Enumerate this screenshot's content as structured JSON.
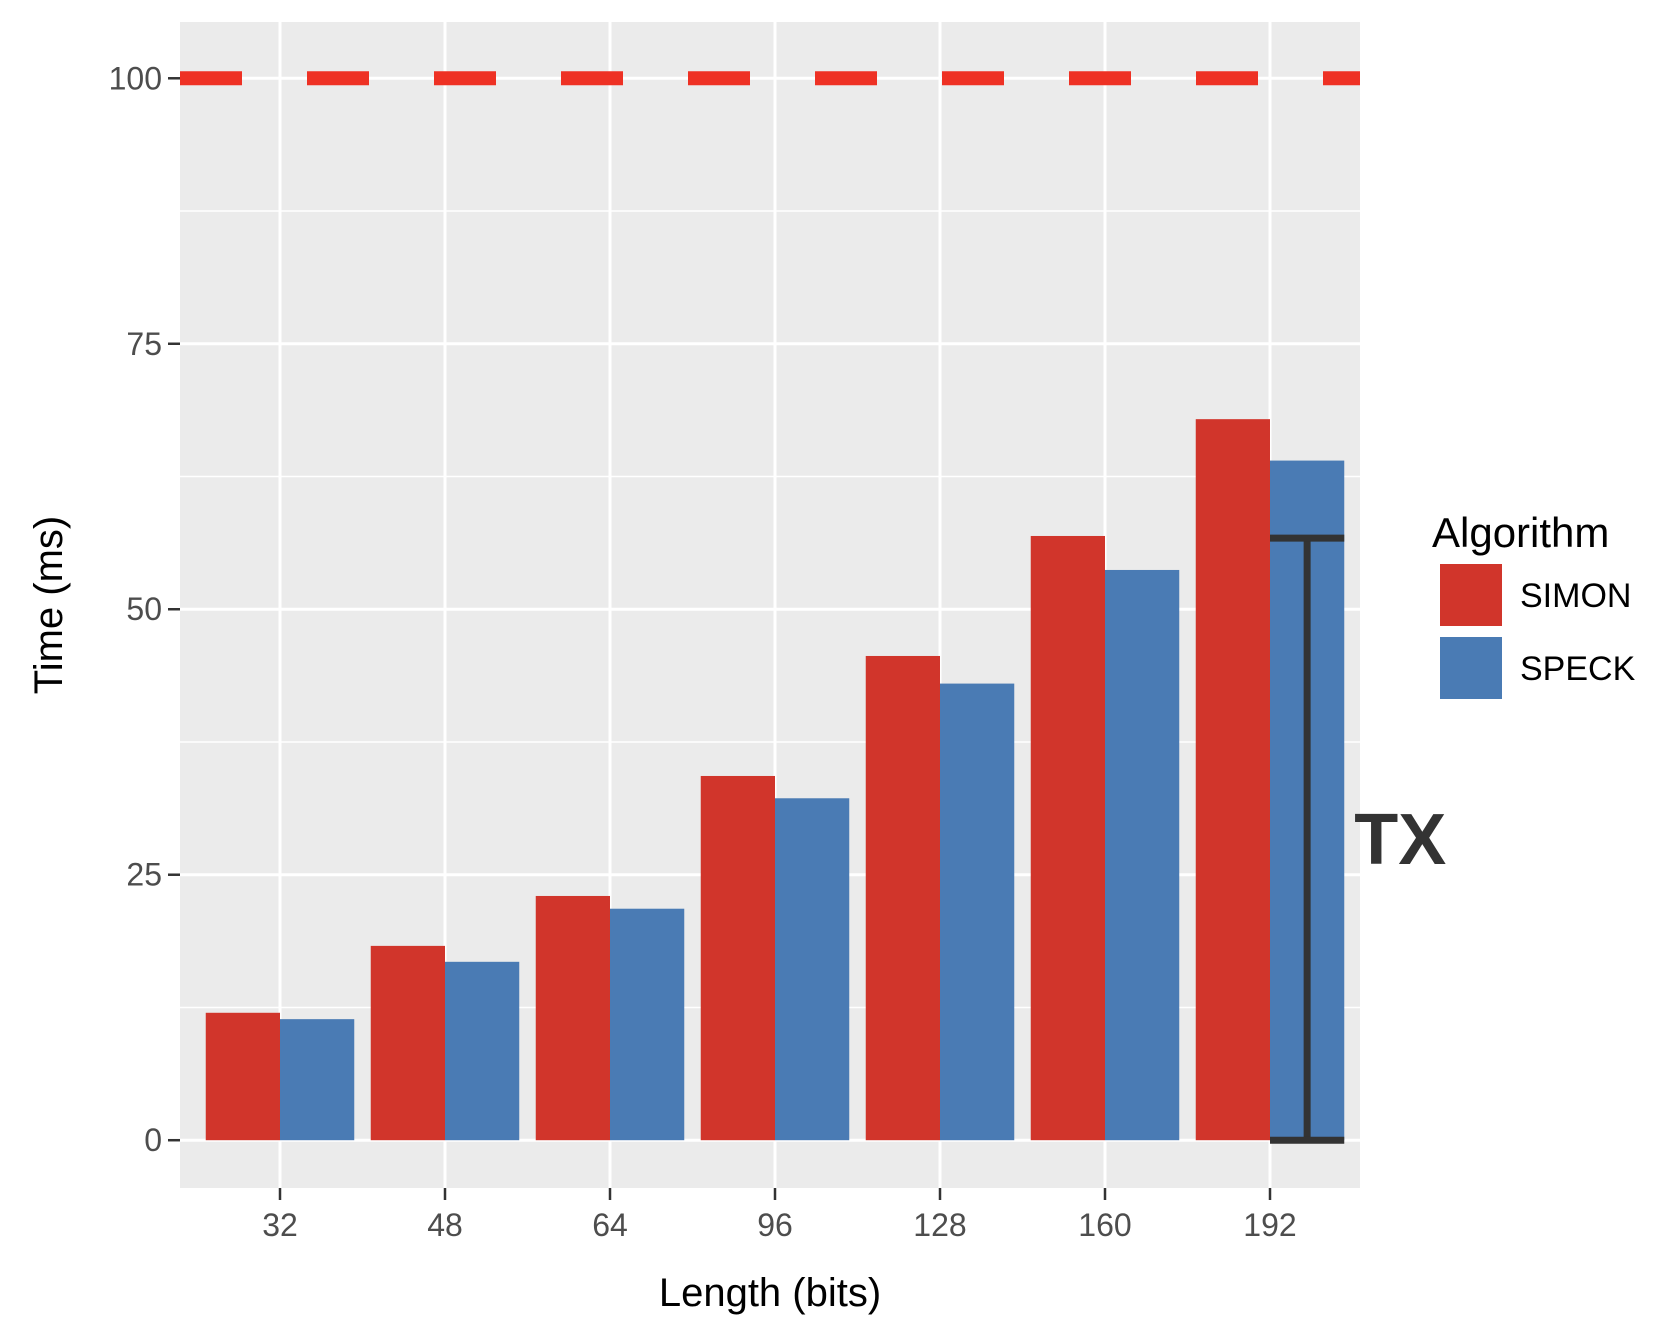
{
  "chart_data": {
    "type": "bar",
    "categories": [
      "32",
      "48",
      "64",
      "96",
      "128",
      "160",
      "192"
    ],
    "series": [
      {
        "name": "SIMON",
        "color": "#d1352b",
        "values": [
          12,
          18.3,
          23,
          34.3,
          45.6,
          56.9,
          67.9
        ]
      },
      {
        "name": "SPECK",
        "color": "#4a7bb4",
        "values": [
          11.4,
          16.8,
          21.8,
          32.2,
          43,
          53.7,
          64
        ]
      }
    ],
    "xlabel": "Length (bits)",
    "ylabel": "Time (ms)",
    "ylim": [
      -4.5,
      105.3
    ],
    "yticks": [
      "0",
      "25",
      "50",
      "75",
      "100"
    ],
    "grid": true,
    "legend": {
      "title": "Algorithm",
      "placement": "right"
    },
    "reference_line": {
      "y": 100,
      "style": "dashed",
      "color": "#ee3124"
    },
    "annotation": {
      "text": "TX",
      "category": "192",
      "from": 0,
      "to": 56.7
    }
  }
}
